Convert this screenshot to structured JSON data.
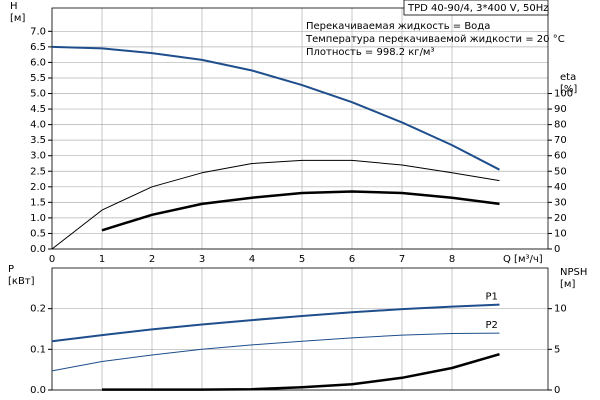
{
  "chart_data": [
    {
      "type": "line",
      "title": "TPD 40-90/4, 3*400 V, 50Hz",
      "annotations": [
        "Перекачиваемая жидкость = Вода",
        "Температура перекачиваемой жидкости = 20 °C",
        "Плотность = 998.2 кг/м³"
      ],
      "ylabel": [
        "H",
        "[м]"
      ],
      "y2label": [
        "eta",
        "[%]"
      ],
      "xlabel": "Q [м³/ч]",
      "xlim": [
        0,
        9.92
      ],
      "xticks": [
        0,
        1,
        2,
        3,
        4,
        5,
        6,
        7,
        8
      ],
      "x_tick_labels": true,
      "ylim": [
        0,
        7.75
      ],
      "yticks": [
        {
          "value": 0,
          "label": "0.0"
        },
        0.5,
        {
          "value": 1,
          "label": "1.0"
        },
        1.5,
        {
          "value": 2,
          "label": "2.0"
        },
        2.5,
        {
          "value": 3,
          "label": "3.0"
        },
        3.5,
        {
          "value": 4,
          "label": "4.0"
        },
        4.5,
        {
          "value": 5,
          "label": "5.0"
        },
        5.5,
        {
          "value": 6,
          "label": "6.0"
        },
        6.5,
        {
          "value": 7,
          "label": "7.0"
        }
      ],
      "y2lim": [
        0,
        155
      ],
      "y2ticks": [
        0,
        10,
        20,
        30,
        40,
        50,
        60,
        70,
        80,
        90,
        100
      ],
      "grid": true,
      "series": [
        {
          "color": "#1f4e8c",
          "width": 2,
          "x": [
            0,
            1,
            2,
            3,
            4,
            5,
            6,
            7,
            8,
            8.95
          ],
          "values": [
            6.5,
            6.45,
            6.3,
            6.08,
            5.74,
            5.27,
            4.72,
            4.07,
            3.34,
            2.55
          ]
        },
        {
          "color": "#000000",
          "width": 1,
          "axis": "y2",
          "x": [
            0,
            1,
            2,
            3,
            4,
            5,
            6,
            7,
            8,
            8.95
          ],
          "values": [
            0,
            25,
            40,
            49,
            55,
            57,
            57,
            54,
            49,
            44
          ]
        },
        {
          "color": "#000000",
          "width": 2.5,
          "axis": "y2",
          "x": [
            1,
            2,
            3,
            4,
            5,
            6,
            7,
            8,
            8.95
          ],
          "values": [
            12,
            22,
            29,
            33,
            36,
            37,
            36,
            33,
            29
          ]
        }
      ]
    },
    {
      "type": "line",
      "ylabel": [
        "P",
        "[кВт]"
      ],
      "y2label": [
        "NPSH",
        "[м]"
      ],
      "xlim": [
        0,
        9.92
      ],
      "xticks": [
        0,
        1,
        2,
        3,
        4,
        5,
        6,
        7,
        8
      ],
      "x_tick_labels": false,
      "ylim": [
        0,
        0.3
      ],
      "yticks": [
        {
          "value": 0,
          "label": "0.0"
        },
        0.1,
        0.2
      ],
      "y2lim": [
        0,
        15
      ],
      "y2ticks": [
        0,
        5,
        10
      ],
      "grid": true,
      "series": [
        {
          "name": "P1",
          "color": "#1f4e8c",
          "width": 2,
          "x": [
            0,
            1,
            2,
            3,
            4,
            5,
            6,
            7,
            8,
            8.95
          ],
          "values": [
            0.12,
            0.135,
            0.149,
            0.161,
            0.172,
            0.182,
            0.191,
            0.199,
            0.205,
            0.21
          ]
        },
        {
          "name": "P2",
          "color": "#1f4e8c",
          "width": 1,
          "x": [
            0,
            1,
            2,
            3,
            4,
            5,
            6,
            7,
            8,
            8.95
          ],
          "values": [
            0.047,
            0.07,
            0.086,
            0.1,
            0.111,
            0.12,
            0.128,
            0.135,
            0.139,
            0.14
          ]
        },
        {
          "color": "#000000",
          "width": 2.5,
          "axis": "y2",
          "x": [
            1,
            2,
            3,
            4,
            5,
            6,
            7,
            8,
            8.95
          ],
          "values": [
            0.05,
            0.05,
            0.05,
            0.1,
            0.35,
            0.7,
            1.5,
            2.7,
            4.4
          ]
        }
      ]
    }
  ]
}
